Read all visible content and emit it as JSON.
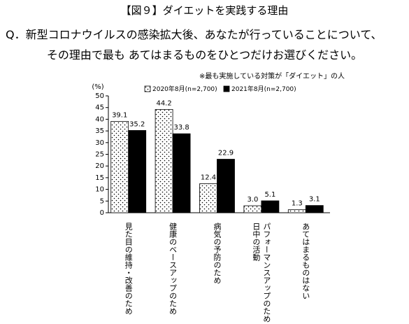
{
  "chart_data": {
    "type": "bar",
    "title": "【図９】ダイエットを実践する理由",
    "subtitle": [
      "Q．新型コロナウイルスの感染拡大後、あなたが行っていることについて、",
      "その理由で最も あてはまるものをひとつだけお選びください。"
    ],
    "note": "※最も実施している対策が「ダイエット」の人",
    "y_label": "(%)",
    "categories": [
      "見た目の維持・改善のため",
      "健康のベースアップのため",
      "病気の予防のため",
      "日中の活動\nパフォーマンスアップのため",
      "あてはまるものはない"
    ],
    "series": [
      {
        "name": "2020年8月(n=2,700)",
        "color": "#ffffff",
        "pattern": "dots",
        "values": [
          39.1,
          44.2,
          12.4,
          3.0,
          1.3
        ],
        "value_labels": [
          "39.1",
          "44.2",
          "12.4",
          "3.0",
          "1.3"
        ]
      },
      {
        "name": "2021年8月(n=2,700)",
        "color": "#000000",
        "values": [
          35.2,
          33.8,
          22.9,
          5.1,
          3.1
        ]
      }
    ],
    "ylim": [
      0,
      50
    ],
    "yticks": [
      0,
      5,
      10,
      15,
      20,
      25,
      30,
      35,
      40,
      45,
      50
    ]
  }
}
